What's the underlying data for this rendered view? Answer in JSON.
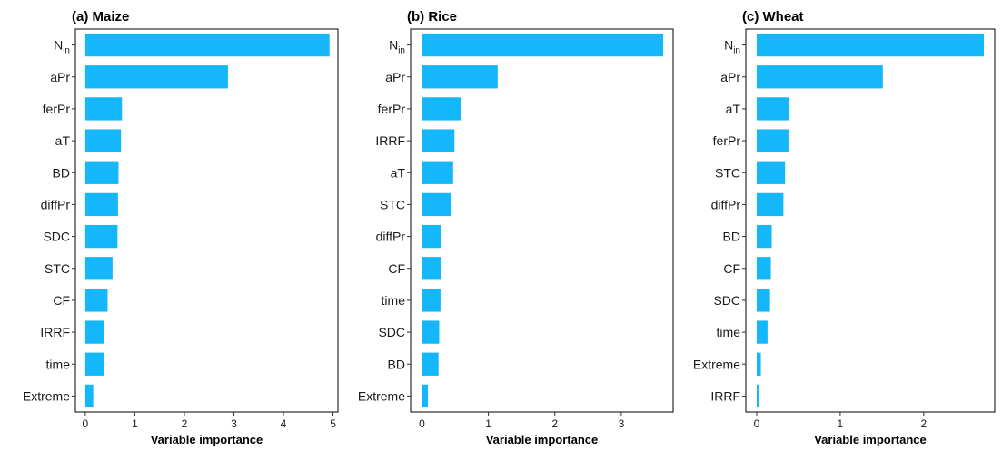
{
  "chart_data": [
    {
      "type": "bar",
      "orientation": "horizontal",
      "title": "(a) Maize",
      "xlabel": "Variable importance",
      "ylabel": "",
      "xlim": [
        -0.2,
        5.1
      ],
      "xticks": [
        "0",
        "1",
        "2",
        "3",
        "4",
        "5"
      ],
      "color": "#14B8FA",
      "bars": [
        {
          "label": "N",
          "subscript": "in",
          "value": 4.93
        },
        {
          "label": "aPr",
          "value": 2.88
        },
        {
          "label": "ferPr",
          "value": 0.74
        },
        {
          "label": "aT",
          "value": 0.72
        },
        {
          "label": "BD",
          "value": 0.67
        },
        {
          "label": "diffPr",
          "value": 0.66
        },
        {
          "label": "SDC",
          "value": 0.65
        },
        {
          "label": "STC",
          "value": 0.55
        },
        {
          "label": "CF",
          "value": 0.45
        },
        {
          "label": "IRRF",
          "value": 0.37
        },
        {
          "label": "time",
          "value": 0.37
        },
        {
          "label": "Extreme",
          "value": 0.16
        }
      ]
    },
    {
      "type": "bar",
      "orientation": "horizontal",
      "title": "(b) Rice",
      "xlabel": "Variable importance",
      "ylabel": "",
      "xlim": [
        -0.17,
        3.78
      ],
      "xticks": [
        "0",
        "1",
        "2",
        "3"
      ],
      "color": "#14B8FA",
      "bars": [
        {
          "label": "N",
          "subscript": "in",
          "value": 3.63
        },
        {
          "label": "aPr",
          "value": 1.14
        },
        {
          "label": "ferPr",
          "value": 0.59
        },
        {
          "label": "IRRF",
          "value": 0.49
        },
        {
          "label": "aT",
          "value": 0.47
        },
        {
          "label": "STC",
          "value": 0.44
        },
        {
          "label": "diffPr",
          "value": 0.29
        },
        {
          "label": "CF",
          "value": 0.29
        },
        {
          "label": "time",
          "value": 0.28
        },
        {
          "label": "SDC",
          "value": 0.26
        },
        {
          "label": "BD",
          "value": 0.25
        },
        {
          "label": "Extreme",
          "value": 0.09
        }
      ]
    },
    {
      "type": "bar",
      "orientation": "horizontal",
      "title": "(c) Wheat",
      "xlabel": "Variable importance",
      "ylabel": "",
      "xlim": [
        -0.13,
        2.85
      ],
      "xticks": [
        "0",
        "1",
        "2"
      ],
      "color": "#14B8FA",
      "bars": [
        {
          "label": "N",
          "subscript": "in",
          "value": 2.72
        },
        {
          "label": "aPr",
          "value": 1.51
        },
        {
          "label": "aT",
          "value": 0.39
        },
        {
          "label": "ferPr",
          "value": 0.38
        },
        {
          "label": "STC",
          "value": 0.34
        },
        {
          "label": "diffPr",
          "value": 0.32
        },
        {
          "label": "BD",
          "value": 0.18
        },
        {
          "label": "CF",
          "value": 0.17
        },
        {
          "label": "SDC",
          "value": 0.16
        },
        {
          "label": "time",
          "value": 0.13
        },
        {
          "label": "Extreme",
          "value": 0.05
        },
        {
          "label": "IRRF",
          "value": 0.03
        }
      ]
    }
  ]
}
